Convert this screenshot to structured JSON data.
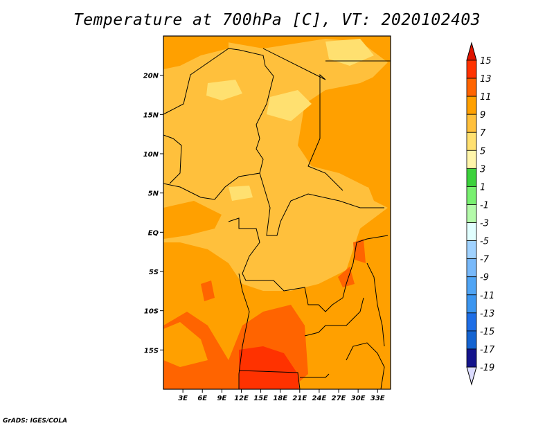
{
  "title": "Temperature at 700hPa [C], VT: 2020102403",
  "credit": "GrADS: IGES/COLA",
  "chart_data": {
    "type": "heatmap",
    "variable": "Temperature at 700hPa",
    "units": "C",
    "valid_time": "2020102403",
    "lon_range": [
      0,
      35
    ],
    "lat_range": [
      -20,
      25
    ],
    "x_ticks": [
      "3E",
      "6E",
      "9E",
      "12E",
      "15E",
      "18E",
      "21E",
      "24E",
      "27E",
      "30E",
      "33E"
    ],
    "x_tick_values": [
      3,
      6,
      9,
      12,
      15,
      18,
      21,
      24,
      27,
      30,
      33
    ],
    "y_ticks": [
      "20N",
      "15N",
      "10N",
      "5N",
      "EQ",
      "5S",
      "10S",
      "15S"
    ],
    "y_tick_values": [
      20,
      15,
      10,
      5,
      0,
      -5,
      -10,
      -15
    ],
    "colorbar": {
      "labels": [
        "15",
        "13",
        "11",
        "9",
        "7",
        "5",
        "3",
        "1",
        "-1",
        "-3",
        "-5",
        "-7",
        "-9",
        "-11",
        "-13",
        "-15",
        "-17",
        "-19"
      ],
      "top_arrow_color": "#e01400",
      "bottom_arrow_color": "#dcdcff",
      "colors": [
        "#ff3200",
        "#ff6400",
        "#ffa000",
        "#ffc03c",
        "#ffe070",
        "#fff5aa",
        "#3cd23c",
        "#78f070",
        "#b4faaa",
        "#e1ffff",
        "#a0d2ff",
        "#78b9fa",
        "#50a5f5",
        "#3c96f0",
        "#1e6ee6",
        "#1464d2",
        "#14148c"
      ]
    },
    "colors": {
      "base": "#ffa000",
      "light": "#ffc03c",
      "lighter": "#ffe070",
      "warm": "#ff6400",
      "hot": "#ff3200"
    }
  }
}
